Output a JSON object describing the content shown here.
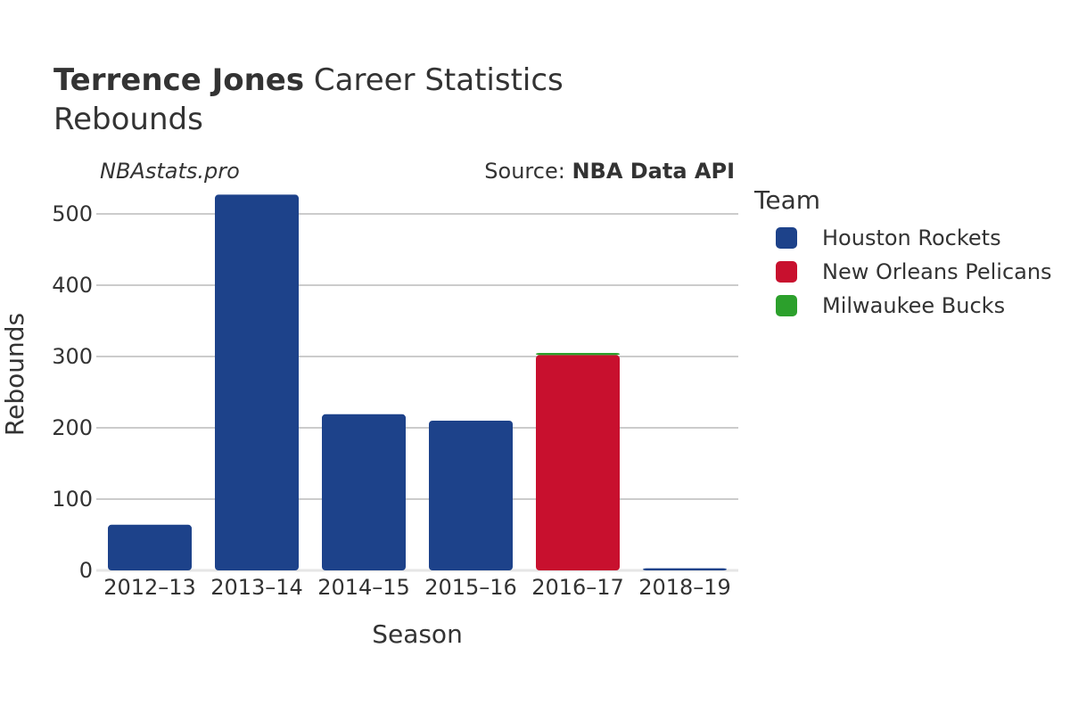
{
  "header": {
    "title_name": "Terrence Jones",
    "title_rest": " Career Statistics",
    "subtitle": "Rebounds"
  },
  "watermark": "NBAstats.pro",
  "source": {
    "prefix": "Source: ",
    "name": "NBA Data API"
  },
  "legend": {
    "title": "Team",
    "items": [
      {
        "label": "Houston Rockets",
        "color": "#1d428a"
      },
      {
        "label": "New Orleans Pelicans",
        "color": "#c8102e"
      },
      {
        "label": "Milwaukee Bucks",
        "color": "#2ca02c"
      }
    ]
  },
  "chart_data": {
    "type": "bar",
    "stacked": true,
    "categories": [
      "2012–13",
      "2013–14",
      "2014–15",
      "2015–16",
      "2016–17",
      "2018–19"
    ],
    "series": [
      {
        "name": "Houston Rockets",
        "color": "#1d428a",
        "values": [
          64,
          527,
          219,
          210,
          0,
          3
        ]
      },
      {
        "name": "New Orleans Pelicans",
        "color": "#c8102e",
        "values": [
          0,
          0,
          0,
          0,
          302,
          0
        ]
      },
      {
        "name": "Milwaukee Bucks",
        "color": "#2ca02c",
        "values": [
          0,
          0,
          0,
          0,
          3,
          0
        ]
      }
    ],
    "xlabel": "Season",
    "ylabel": "Rebounds",
    "ylim": [
      0,
      550
    ],
    "yticks": [
      0,
      100,
      200,
      300,
      400,
      500
    ],
    "grid": true,
    "legend_position": "right"
  }
}
